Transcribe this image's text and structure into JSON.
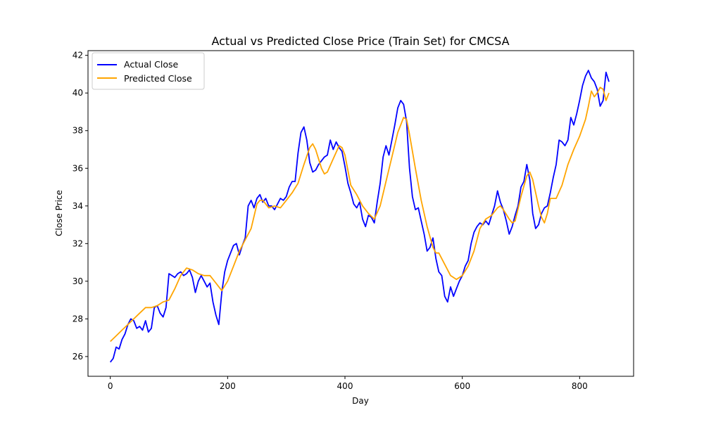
{
  "chart_data": {
    "type": "line",
    "title": "Actual vs Predicted Close Price (Train Set) for CMCSA",
    "xlabel": "Day",
    "ylabel": "Close Price",
    "xlim": [
      -38,
      892
    ],
    "ylim": [
      24.95,
      42.25
    ],
    "x_ticks": [
      0,
      200,
      400,
      600,
      800
    ],
    "y_ticks": [
      26,
      28,
      30,
      32,
      34,
      36,
      38,
      40,
      42
    ],
    "grid": false,
    "legend_position": "upper-left",
    "series": [
      {
        "name": "Actual Close",
        "color": "#0000ff",
        "points": [
          [
            0,
            25.7
          ],
          [
            5,
            25.9
          ],
          [
            10,
            26.5
          ],
          [
            15,
            26.4
          ],
          [
            20,
            26.9
          ],
          [
            25,
            27.2
          ],
          [
            30,
            27.7
          ],
          [
            35,
            28.0
          ],
          [
            40,
            27.9
          ],
          [
            45,
            27.5
          ],
          [
            50,
            27.6
          ],
          [
            55,
            27.4
          ],
          [
            60,
            27.9
          ],
          [
            65,
            27.3
          ],
          [
            70,
            27.5
          ],
          [
            75,
            28.6
          ],
          [
            80,
            28.7
          ],
          [
            85,
            28.3
          ],
          [
            90,
            28.1
          ],
          [
            95,
            28.6
          ],
          [
            100,
            30.4
          ],
          [
            105,
            30.3
          ],
          [
            110,
            30.2
          ],
          [
            115,
            30.4
          ],
          [
            120,
            30.5
          ],
          [
            125,
            30.3
          ],
          [
            130,
            30.4
          ],
          [
            135,
            30.6
          ],
          [
            140,
            30.2
          ],
          [
            145,
            29.4
          ],
          [
            150,
            30.0
          ],
          [
            155,
            30.3
          ],
          [
            160,
            30.0
          ],
          [
            165,
            29.7
          ],
          [
            170,
            29.9
          ],
          [
            175,
            28.9
          ],
          [
            180,
            28.2
          ],
          [
            185,
            27.7
          ],
          [
            190,
            29.4
          ],
          [
            195,
            30.5
          ],
          [
            200,
            31.1
          ],
          [
            205,
            31.5
          ],
          [
            210,
            31.9
          ],
          [
            215,
            32.0
          ],
          [
            220,
            31.4
          ],
          [
            225,
            31.9
          ],
          [
            230,
            32.3
          ],
          [
            235,
            34.0
          ],
          [
            240,
            34.3
          ],
          [
            245,
            33.9
          ],
          [
            250,
            34.4
          ],
          [
            255,
            34.6
          ],
          [
            260,
            34.2
          ],
          [
            265,
            34.4
          ],
          [
            270,
            34.0
          ],
          [
            275,
            34.0
          ],
          [
            280,
            33.8
          ],
          [
            285,
            34.1
          ],
          [
            290,
            34.4
          ],
          [
            295,
            34.3
          ],
          [
            300,
            34.5
          ],
          [
            305,
            35.0
          ],
          [
            310,
            35.3
          ],
          [
            315,
            35.3
          ],
          [
            320,
            36.8
          ],
          [
            325,
            37.9
          ],
          [
            330,
            38.2
          ],
          [
            335,
            37.5
          ],
          [
            340,
            36.3
          ],
          [
            345,
            35.8
          ],
          [
            350,
            35.9
          ],
          [
            355,
            36.2
          ],
          [
            360,
            36.4
          ],
          [
            365,
            36.6
          ],
          [
            370,
            36.7
          ],
          [
            375,
            37.5
          ],
          [
            380,
            37.0
          ],
          [
            385,
            37.4
          ],
          [
            390,
            37.1
          ],
          [
            395,
            36.9
          ],
          [
            400,
            36.1
          ],
          [
            405,
            35.2
          ],
          [
            410,
            34.7
          ],
          [
            415,
            34.1
          ],
          [
            420,
            33.9
          ],
          [
            425,
            34.2
          ],
          [
            430,
            33.3
          ],
          [
            435,
            32.9
          ],
          [
            440,
            33.5
          ],
          [
            445,
            33.4
          ],
          [
            450,
            33.1
          ],
          [
            455,
            34.2
          ],
          [
            460,
            35.2
          ],
          [
            465,
            36.6
          ],
          [
            470,
            37.2
          ],
          [
            475,
            36.7
          ],
          [
            480,
            37.5
          ],
          [
            485,
            38.3
          ],
          [
            490,
            39.2
          ],
          [
            495,
            39.6
          ],
          [
            500,
            39.4
          ],
          [
            505,
            38.5
          ],
          [
            510,
            36.0
          ],
          [
            515,
            34.5
          ],
          [
            520,
            33.8
          ],
          [
            525,
            33.9
          ],
          [
            530,
            33.2
          ],
          [
            535,
            32.5
          ],
          [
            540,
            31.6
          ],
          [
            545,
            31.8
          ],
          [
            550,
            32.3
          ],
          [
            555,
            31.2
          ],
          [
            560,
            30.5
          ],
          [
            565,
            30.3
          ],
          [
            570,
            29.2
          ],
          [
            575,
            28.9
          ],
          [
            580,
            29.7
          ],
          [
            585,
            29.2
          ],
          [
            590,
            29.6
          ],
          [
            595,
            30.0
          ],
          [
            600,
            30.3
          ],
          [
            605,
            30.8
          ],
          [
            610,
            31.1
          ],
          [
            615,
            32.0
          ],
          [
            620,
            32.6
          ],
          [
            625,
            32.9
          ],
          [
            630,
            33.1
          ],
          [
            635,
            33.0
          ],
          [
            640,
            33.2
          ],
          [
            645,
            33.0
          ],
          [
            650,
            33.5
          ],
          [
            655,
            34.0
          ],
          [
            660,
            34.8
          ],
          [
            665,
            34.2
          ],
          [
            670,
            33.8
          ],
          [
            675,
            33.2
          ],
          [
            680,
            32.5
          ],
          [
            685,
            32.9
          ],
          [
            690,
            33.5
          ],
          [
            695,
            34.0
          ],
          [
            700,
            35.0
          ],
          [
            705,
            35.3
          ],
          [
            710,
            36.2
          ],
          [
            715,
            35.4
          ],
          [
            720,
            33.6
          ],
          [
            725,
            32.8
          ],
          [
            730,
            33.0
          ],
          [
            735,
            33.6
          ],
          [
            740,
            33.9
          ],
          [
            745,
            34.0
          ],
          [
            750,
            34.7
          ],
          [
            755,
            35.5
          ],
          [
            760,
            36.2
          ],
          [
            765,
            37.5
          ],
          [
            770,
            37.4
          ],
          [
            775,
            37.2
          ],
          [
            780,
            37.5
          ],
          [
            785,
            38.7
          ],
          [
            790,
            38.3
          ],
          [
            795,
            38.9
          ],
          [
            800,
            39.6
          ],
          [
            805,
            40.4
          ],
          [
            810,
            40.9
          ],
          [
            815,
            41.2
          ],
          [
            820,
            40.8
          ],
          [
            825,
            40.6
          ],
          [
            830,
            40.2
          ],
          [
            835,
            39.3
          ],
          [
            840,
            39.6
          ],
          [
            845,
            41.1
          ],
          [
            850,
            40.6
          ]
        ]
      },
      {
        "name": "Predicted Close",
        "color": "#ffa500",
        "points": [
          [
            0,
            26.8
          ],
          [
            10,
            27.1
          ],
          [
            20,
            27.4
          ],
          [
            30,
            27.7
          ],
          [
            40,
            28.0
          ],
          [
            50,
            28.3
          ],
          [
            60,
            28.6
          ],
          [
            70,
            28.6
          ],
          [
            80,
            28.7
          ],
          [
            90,
            28.9
          ],
          [
            100,
            29.0
          ],
          [
            110,
            29.6
          ],
          [
            120,
            30.3
          ],
          [
            130,
            30.7
          ],
          [
            140,
            30.6
          ],
          [
            150,
            30.4
          ],
          [
            160,
            30.3
          ],
          [
            170,
            30.3
          ],
          [
            180,
            29.9
          ],
          [
            190,
            29.5
          ],
          [
            200,
            30.0
          ],
          [
            210,
            30.8
          ],
          [
            220,
            31.6
          ],
          [
            230,
            32.2
          ],
          [
            240,
            32.8
          ],
          [
            250,
            34.1
          ],
          [
            255,
            34.3
          ],
          [
            260,
            34.3
          ],
          [
            270,
            33.9
          ],
          [
            280,
            34.0
          ],
          [
            290,
            33.9
          ],
          [
            300,
            34.3
          ],
          [
            310,
            34.7
          ],
          [
            320,
            35.2
          ],
          [
            330,
            36.2
          ],
          [
            340,
            37.1
          ],
          [
            345,
            37.3
          ],
          [
            350,
            37.0
          ],
          [
            360,
            36.0
          ],
          [
            365,
            35.7
          ],
          [
            370,
            35.8
          ],
          [
            380,
            36.5
          ],
          [
            390,
            37.2
          ],
          [
            395,
            37.1
          ],
          [
            400,
            36.7
          ],
          [
            410,
            35.1
          ],
          [
            420,
            34.6
          ],
          [
            430,
            34.0
          ],
          [
            440,
            33.6
          ],
          [
            450,
            33.3
          ],
          [
            460,
            34.0
          ],
          [
            470,
            35.3
          ],
          [
            480,
            36.6
          ],
          [
            490,
            37.9
          ],
          [
            500,
            38.7
          ],
          [
            505,
            38.6
          ],
          [
            510,
            37.8
          ],
          [
            520,
            36.0
          ],
          [
            530,
            34.3
          ],
          [
            540,
            32.9
          ],
          [
            550,
            31.8
          ],
          [
            555,
            31.5
          ],
          [
            560,
            31.5
          ],
          [
            570,
            30.9
          ],
          [
            580,
            30.3
          ],
          [
            590,
            30.1
          ],
          [
            600,
            30.3
          ],
          [
            610,
            30.8
          ],
          [
            620,
            31.6
          ],
          [
            630,
            32.8
          ],
          [
            640,
            33.3
          ],
          [
            650,
            33.5
          ],
          [
            660,
            33.9
          ],
          [
            665,
            34.0
          ],
          [
            670,
            33.8
          ],
          [
            680,
            33.3
          ],
          [
            685,
            33.1
          ],
          [
            690,
            33.2
          ],
          [
            700,
            34.5
          ],
          [
            710,
            35.6
          ],
          [
            715,
            35.8
          ],
          [
            720,
            35.4
          ],
          [
            730,
            34.0
          ],
          [
            735,
            33.4
          ],
          [
            740,
            33.1
          ],
          [
            745,
            33.6
          ],
          [
            750,
            34.4
          ],
          [
            760,
            34.4
          ],
          [
            770,
            35.1
          ],
          [
            780,
            36.2
          ],
          [
            790,
            37.0
          ],
          [
            800,
            37.7
          ],
          [
            810,
            38.6
          ],
          [
            815,
            39.3
          ],
          [
            820,
            40.1
          ],
          [
            825,
            39.8
          ],
          [
            830,
            40.0
          ],
          [
            835,
            40.3
          ],
          [
            840,
            40.2
          ],
          [
            845,
            39.6
          ],
          [
            850,
            40.0
          ]
        ]
      }
    ]
  }
}
